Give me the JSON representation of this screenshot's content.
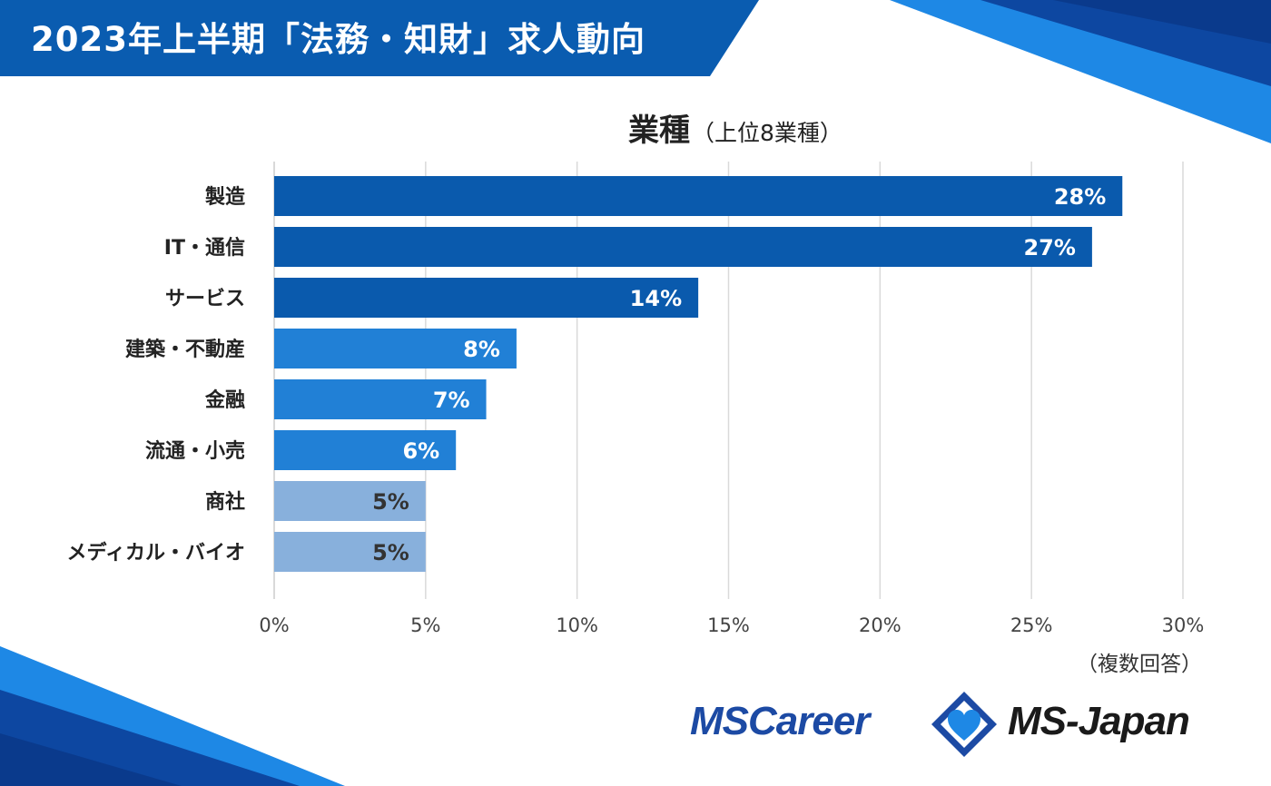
{
  "header": {
    "title": "2023年上半期「法務・知財」求人動向"
  },
  "chart_data": {
    "type": "bar",
    "orientation": "horizontal",
    "title": "業種",
    "subtitle": "（上位8業種）",
    "categories": [
      "製造",
      "IT・通信",
      "サービス",
      "建築・不動産",
      "金融",
      "流通・小売",
      "商社",
      "メディカル・バイオ"
    ],
    "values": [
      28,
      27,
      14,
      8,
      7,
      6,
      5,
      5
    ],
    "value_labels": [
      "28%",
      "27%",
      "14%",
      "8%",
      "7%",
      "6%",
      "5%",
      "5%"
    ],
    "x_ticks": [
      "0%",
      "5%",
      "10%",
      "15%",
      "20%",
      "25%",
      "30%"
    ],
    "xlim": [
      0,
      30
    ],
    "grid": "vertical",
    "bar_colors": [
      "#0a5aad",
      "#0a5aad",
      "#0a5aad",
      "#2180d6",
      "#2180d6",
      "#2180d6",
      "#88b0dc",
      "#88b0dc"
    ],
    "note": "（複数回答）"
  },
  "logos": {
    "left": "MSCareer",
    "right": "MS-Japan"
  },
  "colors": {
    "banner": "#0a5cb0",
    "accent_dark": "#0d47a1",
    "accent_light": "#1e88e5"
  }
}
